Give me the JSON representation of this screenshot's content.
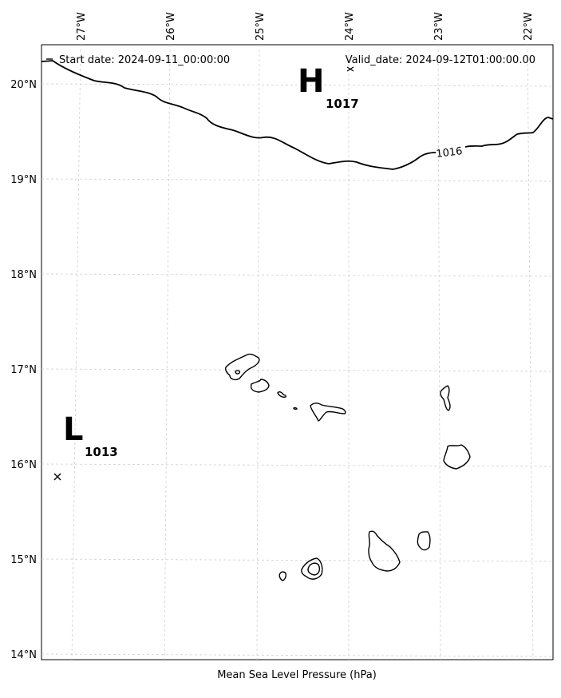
{
  "header": {
    "start_date": "Start date: 2024-09-11_00:00:00",
    "valid_date": "Valid_date: 2024-09-12T01:00:00.00"
  },
  "caption": "Mean Sea Level Pressure (hPa)",
  "longitude_ticks": [
    "27°W",
    "26°W",
    "25°W",
    "24°W",
    "23°W",
    "22°W"
  ],
  "latitude_ticks": [
    "20°N",
    "19°N",
    "18°N",
    "17°N",
    "16°N",
    "15°N",
    "14°N"
  ],
  "pressure_centers": [
    {
      "type": "H",
      "value": "1017"
    },
    {
      "type": "L",
      "value": "1013"
    }
  ],
  "isobars": [
    {
      "label": "1016"
    }
  ],
  "colors": {
    "background": "#ffffff",
    "line": "#000000",
    "grid": "#cfcfcf"
  }
}
